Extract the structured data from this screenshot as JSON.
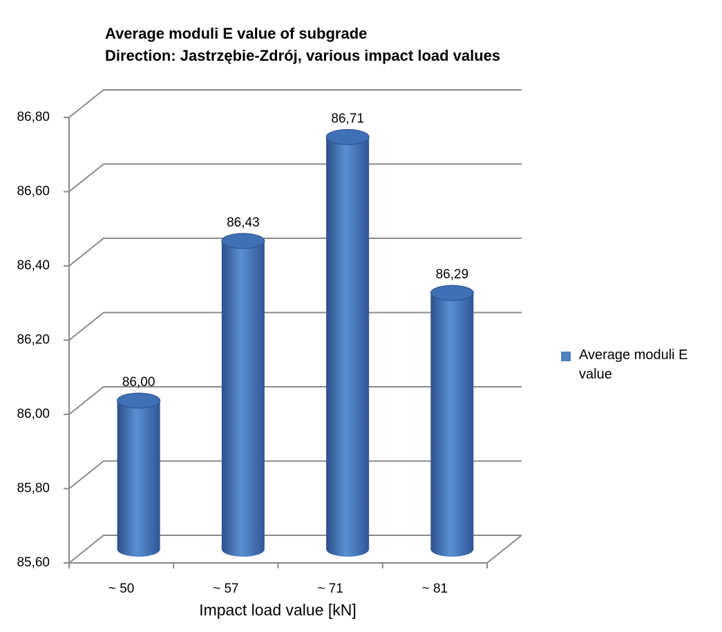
{
  "chart_data": {
    "type": "bar3d",
    "title": "Average moduli E value of subgrade",
    "subtitle": "Direction: Jastrzębie-Zdrój, various impact load values",
    "x_label": "Impact load value [kN]",
    "categories": [
      "~ 50",
      "~ 57",
      "~ 71",
      "~ 81"
    ],
    "series": [
      {
        "name": "Average  moduli E value",
        "color": "#4f81bd",
        "values": [
          86.0,
          86.43,
          86.71,
          86.29
        ],
        "value_labels": [
          "86,00",
          "86,43",
          "86,71",
          "86,29"
        ]
      }
    ],
    "ylim": [
      85.6,
      86.8
    ],
    "yticks": [
      {
        "value": 85.6,
        "label": "85,60"
      },
      {
        "value": 85.8,
        "label": "85,80"
      },
      {
        "value": 86.0,
        "label": "86,00"
      },
      {
        "value": 86.2,
        "label": "86,20"
      },
      {
        "value": 86.4,
        "label": "86,40"
      },
      {
        "value": 86.6,
        "label": "86,60"
      },
      {
        "value": 86.8,
        "label": "86,80"
      }
    ],
    "grid": true,
    "legend": "right"
  }
}
